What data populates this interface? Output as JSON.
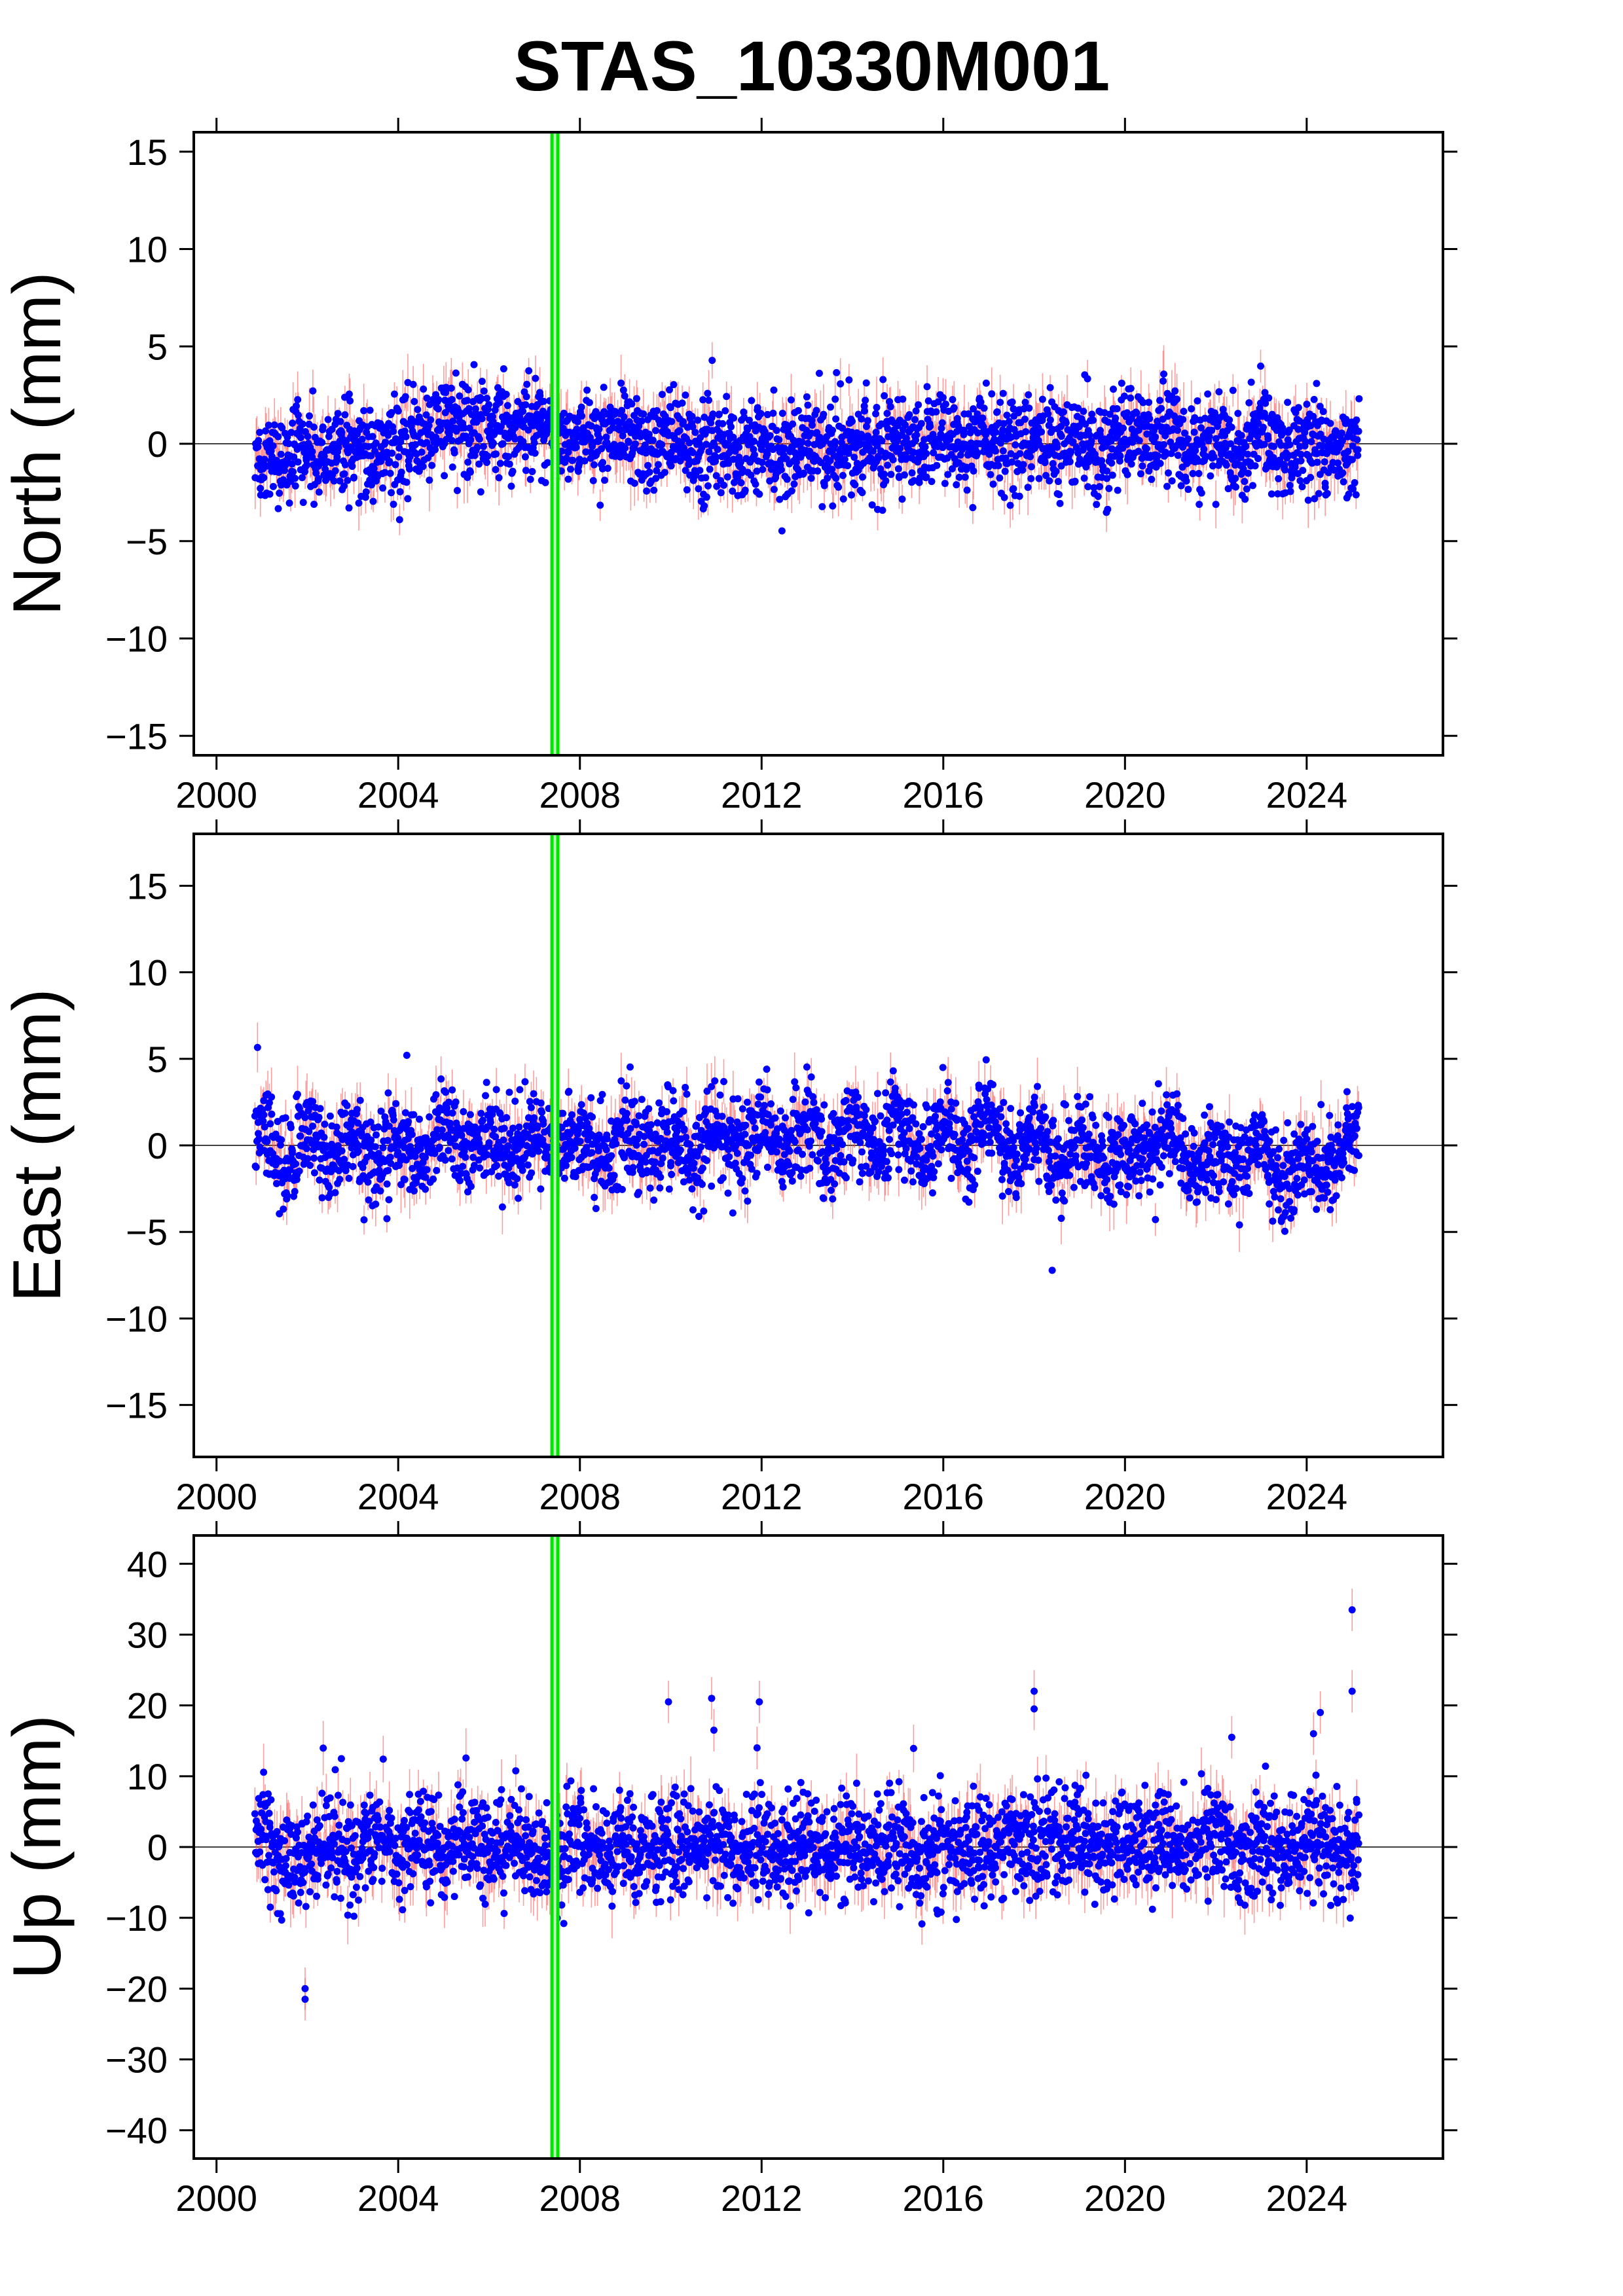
{
  "title": "STAS_10330M001",
  "colors": {
    "points": "#0000ff",
    "error_bars": "#ff4d4d",
    "event_line": "#00e600",
    "zero_line": "#000000",
    "axes": "#000000"
  },
  "chart_data": [
    {
      "type": "scatter",
      "name": "north",
      "ylabel": "North (mm)",
      "xlim": [
        1999.5,
        2027.0
      ],
      "ylim": [
        -16,
        16
      ],
      "xticks": [
        2000,
        2004,
        2008,
        2012,
        2016,
        2020,
        2024
      ],
      "xtick_labels": [
        "2000",
        "2004",
        "2008",
        "2012",
        "2016",
        "2020",
        "2024"
      ],
      "yticks": [
        -15,
        -10,
        -5,
        0,
        5,
        10,
        15
      ],
      "ytick_labels": [
        "−15",
        "−10",
        "−5",
        "0",
        "5",
        "10",
        "15"
      ],
      "zero_line": 0,
      "event_line_x": 2007.45,
      "data_range": [
        2000.85,
        2025.15
      ],
      "spread_mm": 1.2,
      "series": [
        {
          "name": "",
          "x": [
            2001.0,
            2001.5,
            2002.0,
            2002.5,
            2003.0,
            2003.5,
            2004.0,
            2004.5,
            2005.0,
            2005.5,
            2006.0,
            2006.5,
            2007.0,
            2007.5,
            2008.0,
            2008.5,
            2009.0,
            2009.5,
            2010.0,
            2010.5,
            2011.0,
            2011.5,
            2012.0,
            2012.5,
            2013.0,
            2013.5,
            2014.0,
            2014.5,
            2015.0,
            2015.5,
            2016.0,
            2016.5,
            2017.0,
            2017.5,
            2018.0,
            2018.5,
            2019.0,
            2019.5,
            2020.0,
            2020.5,
            2021.0,
            2021.5,
            2022.0,
            2022.5,
            2023.0,
            2023.5,
            2024.0,
            2024.5,
            2025.0
          ],
          "y": [
            -0.5,
            -1.0,
            -0.3,
            -0.6,
            -0.2,
            -0.4,
            0.1,
            0.5,
            1.0,
            1.3,
            0.8,
            0.6,
            0.7,
            0.3,
            0.2,
            0.4,
            0.3,
            -0.1,
            0.2,
            -0.4,
            0.1,
            -0.6,
            0.1,
            -0.5,
            0.0,
            -0.5,
            0.2,
            -0.3,
            0.1,
            -0.3,
            0.2,
            -0.3,
            0.1,
            -0.3,
            0.2,
            -0.2,
            0.2,
            -0.4,
            0.3,
            0.4,
            0.6,
            -0.4,
            0.5,
            -0.7,
            0.5,
            -0.7,
            0.5,
            -0.5,
            0.0
          ]
        }
      ]
    },
    {
      "type": "scatter",
      "name": "east",
      "ylabel": "East (mm)",
      "xlim": [
        1999.5,
        2027.0
      ],
      "ylim": [
        -18,
        18
      ],
      "xticks": [
        2000,
        2004,
        2008,
        2012,
        2016,
        2020,
        2024
      ],
      "xtick_labels": [
        "2000",
        "2004",
        "2008",
        "2012",
        "2016",
        "2020",
        "2024"
      ],
      "yticks": [
        -15,
        -10,
        -5,
        0,
        5,
        10,
        15
      ],
      "ytick_labels": [
        "−15",
        "−10",
        "−5",
        "0",
        "5",
        "10",
        "15"
      ],
      "zero_line": 0,
      "event_line_x": 2007.45,
      "data_range": [
        2000.85,
        2025.15
      ],
      "spread_mm": 1.3,
      "series": [
        {
          "name": "",
          "x": [
            2001.0,
            2001.5,
            2002.0,
            2002.5,
            2003.0,
            2003.5,
            2004.0,
            2004.5,
            2005.0,
            2005.5,
            2006.0,
            2006.5,
            2007.0,
            2007.5,
            2008.0,
            2008.5,
            2009.0,
            2009.5,
            2010.0,
            2010.5,
            2011.0,
            2011.5,
            2012.0,
            2012.5,
            2013.0,
            2013.5,
            2014.0,
            2014.5,
            2015.0,
            2015.5,
            2016.0,
            2016.5,
            2017.0,
            2017.5,
            2018.0,
            2018.5,
            2019.0,
            2019.5,
            2020.0,
            2020.5,
            2021.0,
            2021.5,
            2022.0,
            2022.5,
            2023.0,
            2023.5,
            2024.0,
            2024.5,
            2025.0
          ],
          "y": [
            1.0,
            -1.0,
            0.8,
            -1.0,
            0.6,
            -1.2,
            0.6,
            -0.4,
            1.2,
            -0.4,
            0.8,
            -0.5,
            0.6,
            -0.2,
            0.5,
            -0.6,
            0.5,
            -0.6,
            0.5,
            -0.6,
            0.8,
            -0.6,
            1.4,
            -0.4,
            1.2,
            -0.4,
            1.4,
            -0.2,
            1.6,
            -0.4,
            1.4,
            -0.6,
            1.2,
            -0.8,
            1.0,
            -1.2,
            0.2,
            -1.2,
            -0.2,
            -0.8,
            0.8,
            -1.5,
            -0.5,
            -1.2,
            0.4,
            -2.5,
            -0.5,
            -1.5,
            0.5
          ]
        }
      ]
    },
    {
      "type": "scatter",
      "name": "up",
      "ylabel": "Up (mm)",
      "xlim": [
        1999.5,
        2027.0
      ],
      "ylim": [
        -44,
        44
      ],
      "xticks": [
        2000,
        2004,
        2008,
        2012,
        2016,
        2020,
        2024
      ],
      "xtick_labels": [
        "2000",
        "2004",
        "2008",
        "2012",
        "2016",
        "2020",
        "2024"
      ],
      "yticks": [
        -40,
        -30,
        -20,
        -10,
        0,
        10,
        20,
        30,
        40
      ],
      "ytick_labels": [
        "−40",
        "−30",
        "−20",
        "−10",
        "0",
        "10",
        "20",
        "30",
        "40"
      ],
      "zero_line": 0,
      "event_line_x": 2007.45,
      "data_range": [
        2000.85,
        2025.15
      ],
      "spread_mm": 3.5,
      "series": [
        {
          "name": "",
          "x": [
            2001.0,
            2001.5,
            2002.0,
            2002.5,
            2003.0,
            2003.5,
            2004.0,
            2004.5,
            2005.0,
            2005.5,
            2006.0,
            2006.5,
            2007.0,
            2007.5,
            2008.0,
            2008.5,
            2009.0,
            2009.5,
            2010.0,
            2010.5,
            2011.0,
            2011.5,
            2012.0,
            2012.5,
            2013.0,
            2013.5,
            2014.0,
            2014.5,
            2015.0,
            2015.5,
            2016.0,
            2016.5,
            2017.0,
            2017.5,
            2018.0,
            2018.5,
            2019.0,
            2019.5,
            2020.0,
            2020.5,
            2021.0,
            2021.5,
            2022.0,
            2022.5,
            2023.0,
            2023.5,
            2024.0,
            2024.5,
            2025.0
          ],
          "y": [
            2.0,
            -2.0,
            -1.0,
            1.0,
            -1.0,
            1.5,
            -1.0,
            1.5,
            -1.0,
            1.0,
            -0.5,
            2.0,
            -1.5,
            -1.0,
            1.5,
            -1.0,
            1.0,
            -1.0,
            1.5,
            -0.5,
            1.5,
            -1.0,
            1.0,
            -1.0,
            0.5,
            -1.0,
            1.0,
            -1.0,
            0.5,
            -1.5,
            0.5,
            -1.0,
            -1.0,
            0.5,
            1.0,
            0.5,
            2.0,
            -0.5,
            1.0,
            0.0,
            1.5,
            0.5,
            2.0,
            -1.0,
            1.0,
            -1.5,
            0.5,
            -0.5,
            -1.0
          ]
        }
      ],
      "outliers": [
        {
          "x": 2001.95,
          "y": -20.0
        },
        {
          "x": 2001.95,
          "y": -21.5
        },
        {
          "x": 2009.95,
          "y": 20.5
        },
        {
          "x": 2010.9,
          "y": 21.0
        },
        {
          "x": 2010.95,
          "y": 16.5
        },
        {
          "x": 2011.95,
          "y": 20.5
        },
        {
          "x": 2011.9,
          "y": 14.0
        },
        {
          "x": 2018.0,
          "y": 19.5
        },
        {
          "x": 2018.0,
          "y": 22.0
        },
        {
          "x": 2024.3,
          "y": 19.0
        },
        {
          "x": 2024.15,
          "y": 16.0
        },
        {
          "x": 2025.0,
          "y": 33.5
        },
        {
          "x": 2025.0,
          "y": 22.0
        },
        {
          "x": 2022.35,
          "y": 15.5
        }
      ]
    }
  ]
}
